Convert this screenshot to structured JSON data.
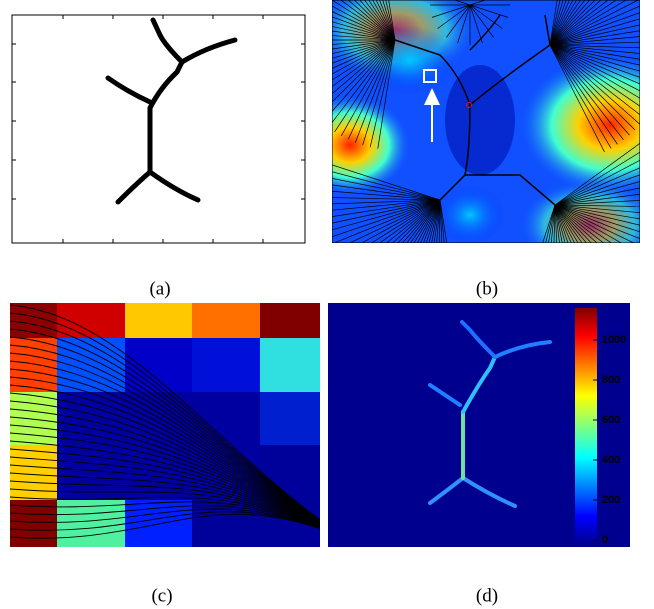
{
  "panels": [
    {
      "label": "(a)"
    },
    {
      "label": "(b)"
    },
    {
      "label": "(c)"
    },
    {
      "label": "(d)",
      "colorbar": {
        "clim": [
          -25,
          1160
        ],
        "ticks": [
          0,
          200,
          400,
          600,
          800,
          1000
        ]
      }
    }
  ]
}
